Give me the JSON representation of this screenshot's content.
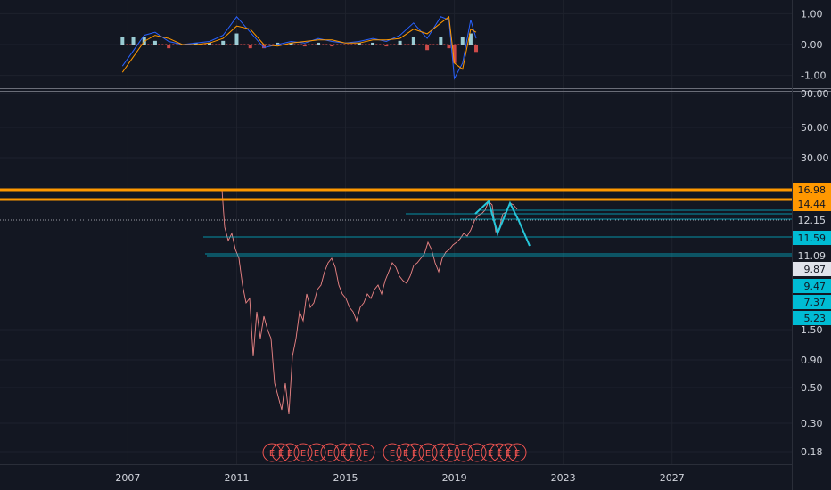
{
  "chart_data": [
    {
      "type": "line",
      "panel": "oscillator",
      "y_ticks": [
        "1.00",
        "0.00",
        "-1.00"
      ],
      "y_tick_values": [
        1,
        0,
        -1
      ],
      "ylim": [
        -1.3,
        1.3
      ],
      "x": [
        2006.8,
        2007.2,
        2007.6,
        2008.0,
        2008.5,
        2009.0,
        2009.5,
        2010.0,
        2010.5,
        2011.0,
        2011.5,
        2012.0,
        2012.5,
        2013.0,
        2013.5,
        2014.0,
        2014.5,
        2015.0,
        2015.5,
        2016.0,
        2016.5,
        2017.0,
        2017.5,
        2018.0,
        2018.5,
        2018.8,
        2019.0,
        2019.3,
        2019.6,
        2019.8
      ],
      "series": [
        {
          "color": "#2962ff",
          "values": [
            -0.7,
            -0.2,
            0.3,
            0.4,
            0.1,
            0.0,
            0.05,
            0.1,
            0.3,
            0.9,
            0.4,
            -0.1,
            0.0,
            0.1,
            0.05,
            0.2,
            0.1,
            0.05,
            0.1,
            0.2,
            0.1,
            0.3,
            0.7,
            0.2,
            0.9,
            0.8,
            -1.1,
            -0.6,
            0.8,
            0.2
          ]
        },
        {
          "color": "#ff9800",
          "values": [
            -0.9,
            -0.4,
            0.1,
            0.3,
            0.2,
            0.0,
            0.0,
            0.05,
            0.2,
            0.6,
            0.5,
            0.0,
            -0.05,
            0.05,
            0.1,
            0.15,
            0.15,
            0.05,
            0.05,
            0.15,
            0.15,
            0.2,
            0.5,
            0.35,
            0.7,
            0.9,
            -0.6,
            -0.8,
            0.5,
            0.4
          ]
        }
      ],
      "histogram_color_up": "#b2ebf2",
      "histogram_color_down": "#ef5350"
    },
    {
      "type": "line",
      "panel": "price",
      "y_scale": "log",
      "y_ticks": [
        "90.00",
        "50.00",
        "30.00",
        "1.50",
        "0.90",
        "0.50",
        "0.30",
        "0.18"
      ],
      "y_tick_values": [
        90,
        50,
        30,
        1.5,
        0.9,
        0.5,
        0.3,
        0.18
      ],
      "x_ticks": [
        "2007",
        "2011",
        "2015",
        "2019",
        "2023",
        "2027"
      ],
      "x_tick_values": [
        2007,
        2011,
        2015,
        2019,
        2023,
        2027
      ],
      "xlim": [
        2002.3,
        2031.4
      ],
      "grid": true,
      "line_color": "#ef5350",
      "price_labels": [
        {
          "text": "16.98",
          "bg": "#ff9800",
          "fg": "#131722"
        },
        {
          "text": "14.44",
          "bg": "#ff9800",
          "fg": "#131722"
        },
        {
          "text": "12.15",
          "bg": "#131722",
          "fg": "#d1d4dc"
        },
        {
          "text": "11.59",
          "bg": "#00bcd4",
          "fg": "#131722"
        },
        {
          "text": "11.09",
          "bg": "#131722",
          "fg": "#d1d4dc"
        },
        {
          "text": "9.87",
          "bg": "#e0e3eb",
          "fg": "#131722"
        },
        {
          "text": "9.47",
          "bg": "#00bcd4",
          "fg": "#131722"
        },
        {
          "text": "7.37",
          "bg": "#00bcd4",
          "fg": "#131722"
        },
        {
          "text": "5.23",
          "bg": "#00bcd4",
          "fg": "#131722"
        }
      ],
      "earnings_marker": "E",
      "earnings_marker_color": "#ef5350"
    }
  ]
}
